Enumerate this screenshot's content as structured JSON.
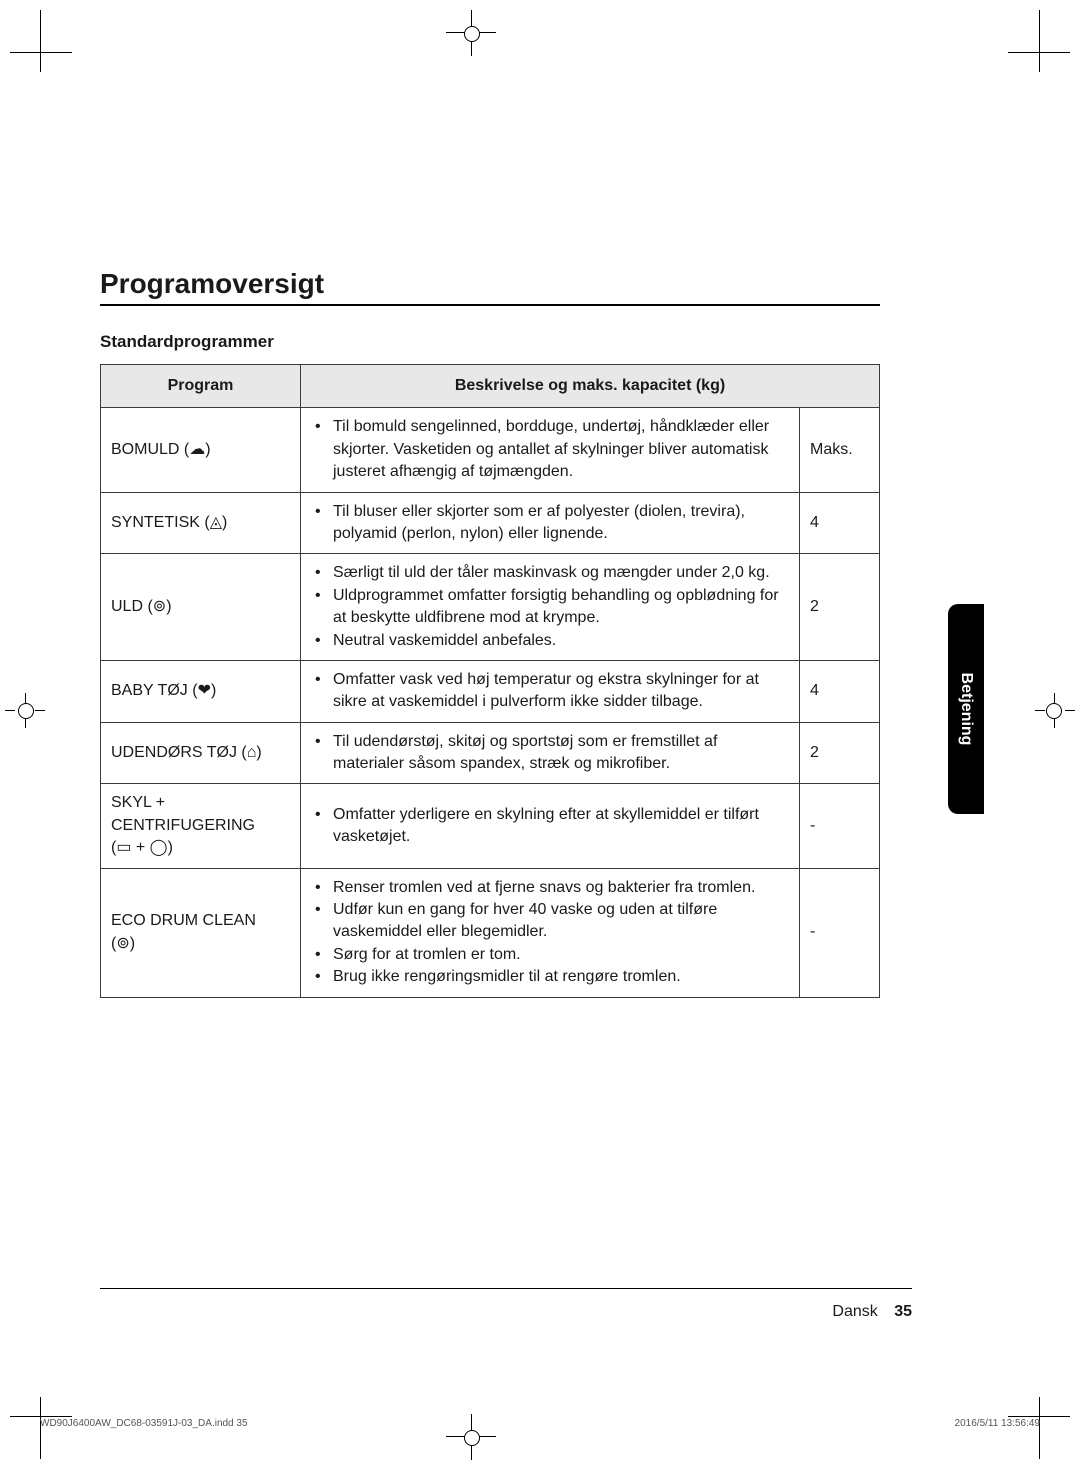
{
  "title": "Programoversigt",
  "subtitle": "Standardprogrammer",
  "table": {
    "headers": {
      "program": "Program",
      "desc": "Beskrivelse og maks. kapacitet (kg)"
    },
    "rows": [
      {
        "program": "BOMULD",
        "icon": "☁",
        "bullets": [
          "Til bomuld sengelinned, bordduge, undertøj, håndklæder eller skjorter.\nVasketiden og antallet af skylninger bliver automatisk justeret afhængig af tøjmængden."
        ],
        "capacity": "Maks."
      },
      {
        "program": "SYNTETISK",
        "icon": "◬",
        "bullets": [
          "Til bluser eller skjorter som er af polyester (diolen, trevira), polyamid (perlon, nylon) eller lignende."
        ],
        "capacity": "4"
      },
      {
        "program": "ULD",
        "icon": "⊚",
        "bullets": [
          "Særligt til uld der tåler maskinvask og mængder under 2,0 kg.",
          "Uldprogrammet omfatter forsigtig behandling og opblødning for at beskytte uldfibrene mod at krympe.",
          "Neutral vaskemiddel anbefales."
        ],
        "capacity": "2"
      },
      {
        "program": "BABY TØJ",
        "icon": "❤",
        "bullets": [
          "Omfatter vask ved høj temperatur og ekstra skylninger for at sikre at vaskemiddel i pulverform ikke sidder tilbage."
        ],
        "capacity": "4"
      },
      {
        "program": "UDENDØRS TØJ",
        "icon": "⌂",
        "bullets": [
          "Til udendørstøj, skitøj og sportstøj som er fremstillet af materialer såsom spandex, stræk og mikrofiber."
        ],
        "capacity": "2"
      },
      {
        "program": "SKYL + CENTRIFUGERING",
        "icon_combo": "(▭ + ◯)",
        "bullets": [
          "Omfatter yderligere en skylning efter at skyllemiddel er tilført vasketøjet."
        ],
        "capacity": "-"
      },
      {
        "program": "ECO DRUM CLEAN",
        "icon": "⊚",
        "bullets": [
          "Renser tromlen ved at fjerne snavs og bakterier fra tromlen.",
          "Udfør kun en gang for hver 40 vaske og uden at tilføre vaskemiddel eller blegemidler.",
          "Sørg for at tromlen er tom.",
          "Brug ikke rengøringsmidler til at rengøre tromlen."
        ],
        "capacity": "-"
      }
    ]
  },
  "side_tab": "Betjening",
  "footer": {
    "lang": "Dansk",
    "page": "35"
  },
  "indd": {
    "left": "WD90J6400AW_DC68-03591J-03_DA.indd   35",
    "right": "2016/5/11   13:56:49"
  }
}
